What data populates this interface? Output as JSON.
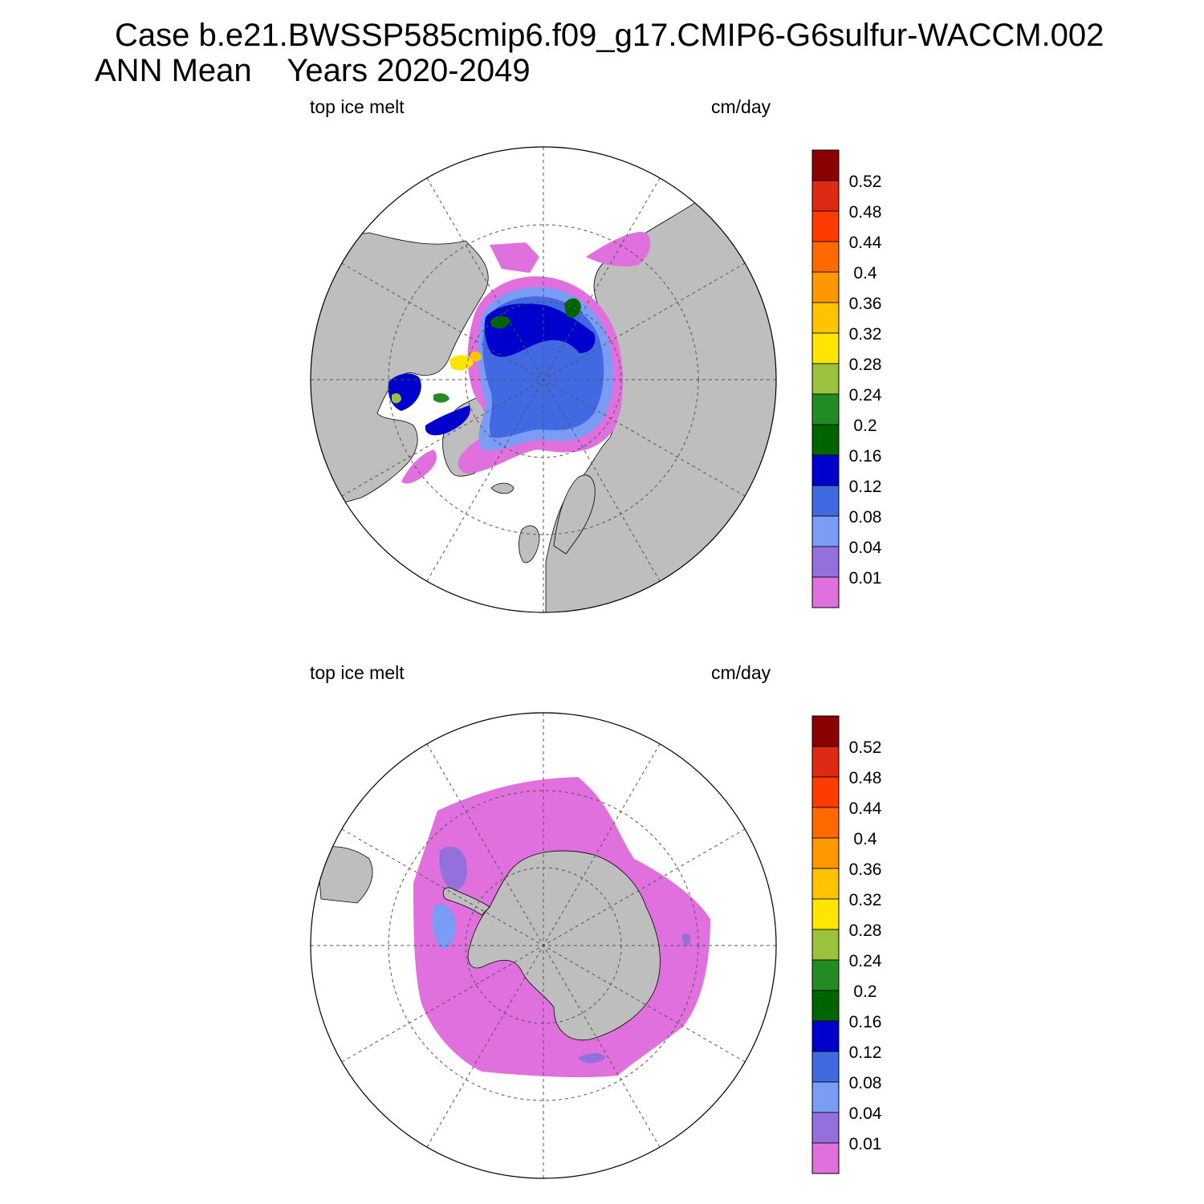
{
  "header": {
    "case_line": "Case b.e21.BWSSP585cmip6.f09_g17.CMIP6-G6sulfur-WACCM.002",
    "period_line": "ANN Mean    Years 2020-2049"
  },
  "colorbar": {
    "levels": [
      "0.52",
      "0.48",
      "0.44",
      "0.4",
      "0.36",
      "0.32",
      "0.28",
      "0.24",
      "0.2",
      "0.16",
      "0.12",
      "0.08",
      "0.04",
      "0.01"
    ],
    "colors": [
      "#8b0000",
      "#dd2a14",
      "#ff3c00",
      "#ff6a00",
      "#ff9700",
      "#ffc300",
      "#ffe500",
      "#9ac23c",
      "#228b22",
      "#006400",
      "#0000cd",
      "#4169e1",
      "#7a9cf5",
      "#9370db",
      "#e070dd"
    ]
  },
  "colors": {
    "land": "#bebebe",
    "ocean": "#ffffff",
    "grid": "#555555",
    "outline": "#000000"
  },
  "panels": [
    {
      "id": "north",
      "left_label": "top ice melt",
      "right_label": "cm/day",
      "hemisphere": "Northern Hemisphere polar stereographic"
    },
    {
      "id": "south",
      "left_label": "top ice melt",
      "right_label": "cm/day",
      "hemisphere": "Southern Hemisphere polar stereographic"
    }
  ]
}
